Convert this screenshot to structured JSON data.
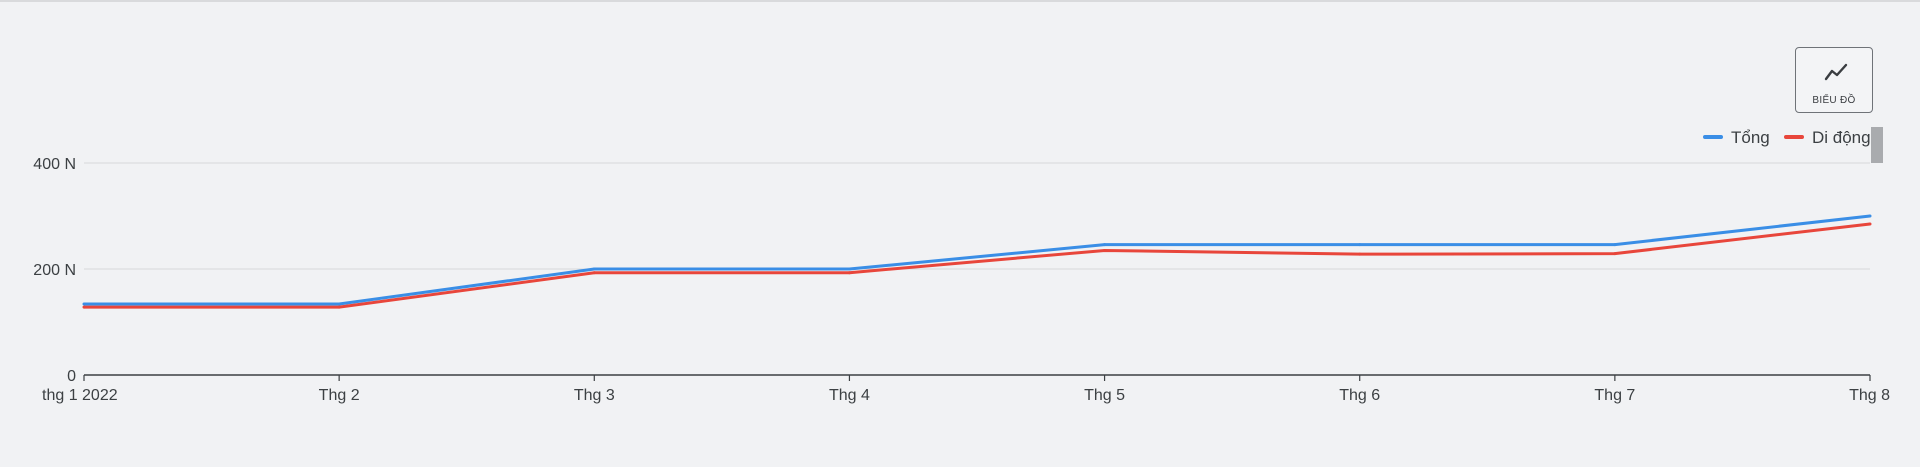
{
  "toolbar": {
    "chart_button_label": "BIỂU ĐỒ",
    "chart_button_icon": "line-chart-icon"
  },
  "chart_data": {
    "type": "line",
    "categories": [
      "thg 1 2022",
      "Thg 2",
      "Thg 3",
      "Thg 4",
      "Thg 5",
      "Thg 6",
      "Thg 7",
      "Thg 8"
    ],
    "series": [
      {
        "name": "Tổng",
        "color": "#3a8ee6",
        "values": [
          134,
          134,
          200,
          200,
          246,
          246,
          246,
          300
        ]
      },
      {
        "name": "Di động",
        "color": "#e8463b",
        "values": [
          128,
          128,
          193,
          193,
          235,
          228,
          229,
          285
        ]
      }
    ],
    "yticks": [
      {
        "value": 0,
        "label": "0"
      },
      {
        "value": 200,
        "label": "200 N"
      },
      {
        "value": 400,
        "label": "400 N"
      }
    ],
    "ylim": [
      0,
      400
    ],
    "grid": true,
    "legend": "top-right",
    "xlabel": "",
    "ylabel": "",
    "title": ""
  }
}
